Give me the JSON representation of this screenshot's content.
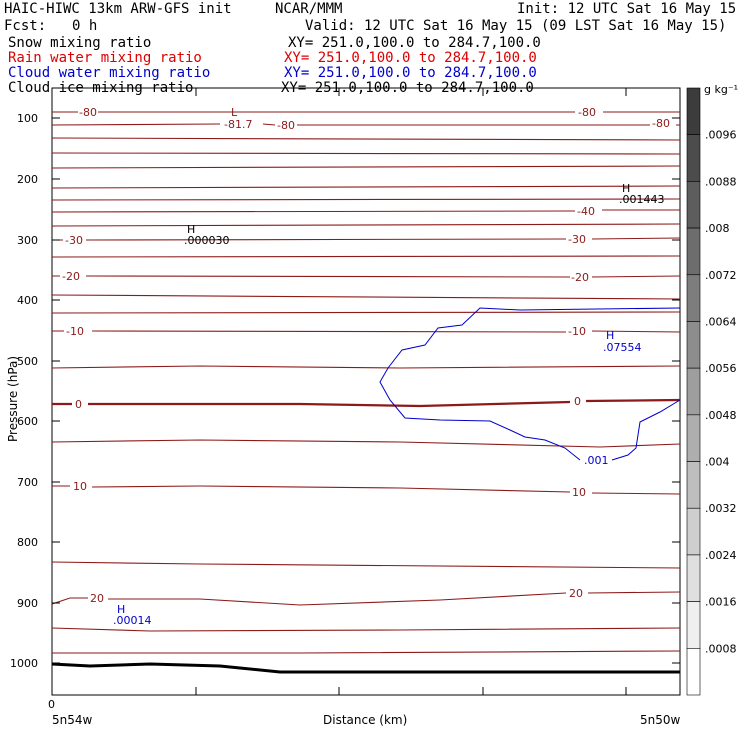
{
  "header": {
    "title_left": "HAIC-HIWC 13km ARW-GFS init",
    "title_mid": "NCAR/MMM",
    "init": "Init: 12 UTC Sat 16 May 15",
    "fcst_label": "Fcst:",
    "fcst_value": "0 h",
    "valid": "Valid: 12 UTC Sat 16 May 15 (09 LST Sat 16 May 15)"
  },
  "fields": [
    {
      "name": "Snow mixing ratio",
      "xy": "XY= 251.0,100.0 to 284.7,100.0",
      "color": "#000000"
    },
    {
      "name": "Rain water mixing ratio",
      "xy": "XY= 251.0,100.0 to 284.7,100.0",
      "color": "#dd0000"
    },
    {
      "name": "Cloud water mixing ratio",
      "xy": "XY= 251.0,100.0 to 284.7,100.0",
      "color": "#0000cc"
    },
    {
      "name": "Cloud ice mixing ratio",
      "xy": "XY= 251.0,100.0 to 284.7,100.0",
      "color": "#000000"
    }
  ],
  "chart_data": {
    "type": "contour",
    "xlabel": "Distance (km)",
    "ylabel": "Pressure (hPa)",
    "x_origin_label": "0",
    "x_start_label": "5n54w",
    "x_end_label": "5n50w",
    "yticks": [
      "100",
      "200",
      "300",
      "400",
      "500",
      "600",
      "700",
      "800",
      "900",
      "1000"
    ],
    "ylim": [
      1050,
      55
    ],
    "colorbar": {
      "unit": "g kg⁻¹",
      "labels": [
        ".0096",
        ".0088",
        ".008",
        ".0072",
        ".0064",
        ".0056",
        ".0048",
        ".004",
        ".0032",
        ".0024",
        ".0016",
        ".0008"
      ]
    },
    "temperature_contour_labels": [
      "-80",
      "-81.7",
      "-80",
      "-80",
      "-80",
      "-40",
      "-30",
      "-30",
      "-20",
      "-20",
      "-10",
      "-10",
      "0",
      "0",
      "10",
      "10",
      "20",
      "20"
    ],
    "extrema": [
      {
        "type": "L",
        "value": "-81.7",
        "color": "#8b1a1a"
      },
      {
        "type": "H",
        "value": ".000030",
        "color": "#000000"
      },
      {
        "type": "H",
        "value": ".001443",
        "color": "#000000"
      },
      {
        "type": "H",
        "value": ".07554",
        "color": "#0000cc"
      },
      {
        "type": "H",
        "value": ".00014",
        "color": "#0000cc"
      }
    ],
    "cloud_water_contour_label": ".001",
    "colors": {
      "temperature": "#8b1a1a",
      "cloud_water": "#0000cc",
      "terrain": "#000000"
    }
  }
}
